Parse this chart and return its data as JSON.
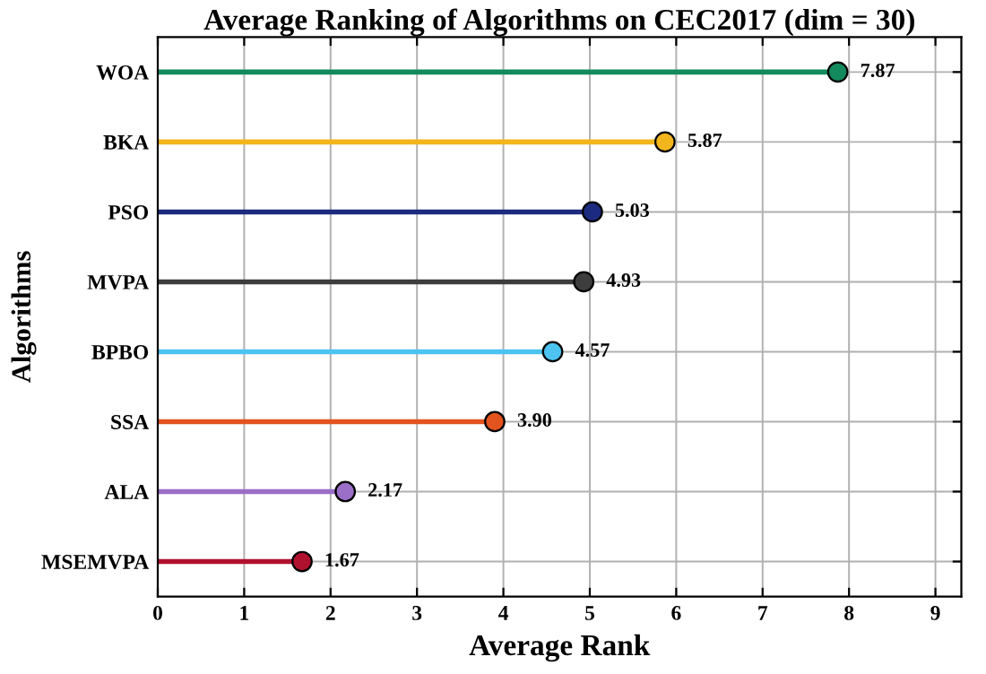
{
  "chart_data": {
    "type": "lollipop",
    "orientation": "horizontal",
    "title": "Average Ranking of Algorithms on CEC2017 (dim = 30)",
    "xlabel": "Average Rank",
    "ylabel": "Algorithms",
    "categories": [
      "WOA",
      "BKA",
      "PSO",
      "MVPA",
      "BPBO",
      "SSA",
      "ALA",
      "MSEMVPA"
    ],
    "values": [
      7.87,
      5.87,
      5.03,
      4.93,
      4.57,
      3.9,
      2.17,
      1.67
    ],
    "value_labels": [
      "7.87",
      "5.87",
      "5.03",
      "4.93",
      "4.57",
      "3.90",
      "2.17",
      "1.67"
    ],
    "colors": [
      "#138a5e",
      "#f2b51c",
      "#1c2a80",
      "#3d3d3d",
      "#4cc3f0",
      "#e2531e",
      "#9b6ec8",
      "#b0112f"
    ],
    "xlim": [
      0,
      9.3
    ],
    "xticks": [
      0,
      1,
      2,
      3,
      4,
      5,
      6,
      7,
      8,
      9
    ],
    "grid": true,
    "marker": "circle"
  }
}
